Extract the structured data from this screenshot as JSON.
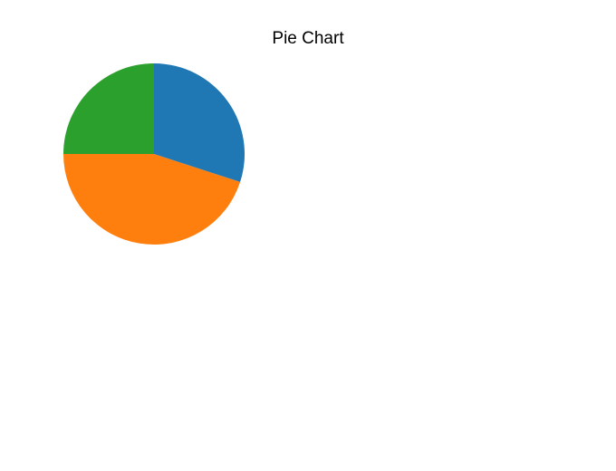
{
  "chart_data": {
    "type": "pie",
    "title": "Pie Chart",
    "start_angle_deg": 90,
    "direction": "counterclockwise",
    "legend": "none",
    "slices": [
      {
        "value": 25,
        "color": "#2ca02c"
      },
      {
        "value": 45,
        "color": "#ff7f0e"
      },
      {
        "value": 30,
        "color": "#1f77b4"
      }
    ]
  }
}
